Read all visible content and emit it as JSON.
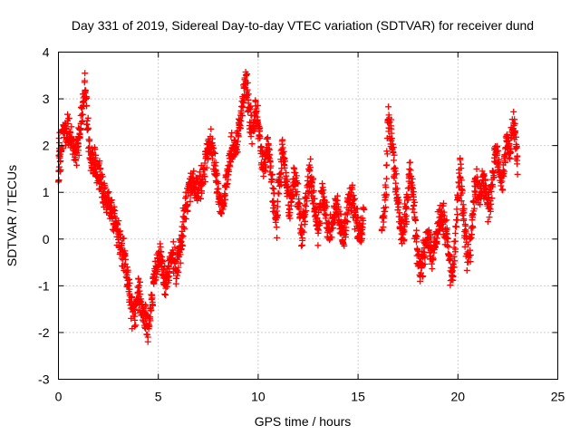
{
  "chart_data": {
    "type": "scatter",
    "title": "Day 331 of 2019, Sidereal Day-to-day VTEC variation (SDTVAR) for receiver dund",
    "xlabel": "GPS time / hours",
    "ylabel": "SDTVAR / TECUs",
    "xlim": [
      0,
      25
    ],
    "ylim": [
      -3,
      4
    ],
    "xticks": [
      0,
      5,
      10,
      15,
      20,
      25
    ],
    "yticks": [
      -3,
      -2,
      -1,
      0,
      1,
      2,
      3,
      4
    ],
    "grid": true,
    "marker": "+",
    "color": "#ff0000",
    "series": [
      {
        "name": "SDTVAR",
        "approx_trace": [
          [
            0.0,
            1.3
          ],
          [
            0.05,
            2.1
          ],
          [
            0.1,
            1.6
          ],
          [
            0.2,
            2.2
          ],
          [
            0.3,
            2.3
          ],
          [
            0.4,
            2.4
          ],
          [
            0.5,
            2.3
          ],
          [
            0.6,
            2.2
          ],
          [
            0.7,
            2.1
          ],
          [
            0.8,
            1.95
          ],
          [
            0.9,
            1.85
          ],
          [
            1.0,
            2.1
          ],
          [
            1.1,
            2.5
          ],
          [
            1.2,
            2.8
          ],
          [
            1.3,
            3.3
          ],
          [
            1.4,
            2.8
          ],
          [
            1.5,
            2.1
          ],
          [
            1.6,
            1.7
          ],
          [
            1.7,
            1.6
          ],
          [
            1.8,
            1.6
          ],
          [
            1.9,
            1.5
          ],
          [
            2.0,
            1.4
          ],
          [
            2.1,
            1.3
          ],
          [
            2.2,
            1.15
          ],
          [
            2.3,
            1.0
          ],
          [
            2.4,
            0.85
          ],
          [
            2.5,
            0.8
          ],
          [
            2.6,
            0.8
          ],
          [
            2.7,
            0.55
          ],
          [
            2.8,
            0.4
          ],
          [
            2.9,
            0.25
          ],
          [
            3.0,
            0.1
          ],
          [
            3.1,
            -0.1
          ],
          [
            3.2,
            -0.25
          ],
          [
            3.3,
            -0.4
          ],
          [
            3.4,
            -0.7
          ],
          [
            3.5,
            -1.0
          ],
          [
            3.6,
            -1.3
          ],
          [
            3.7,
            -1.55
          ],
          [
            3.8,
            -1.65
          ],
          [
            3.9,
            -1.4
          ],
          [
            4.0,
            -1.1
          ],
          [
            4.1,
            -1.3
          ],
          [
            4.2,
            -1.55
          ],
          [
            4.3,
            -1.7
          ],
          [
            4.4,
            -1.8
          ],
          [
            4.5,
            -1.95
          ],
          [
            4.6,
            -1.6
          ],
          [
            4.7,
            -1.2
          ],
          [
            4.8,
            -0.9
          ],
          [
            4.9,
            -0.6
          ],
          [
            5.0,
            -0.4
          ],
          [
            5.1,
            -0.3
          ],
          [
            5.2,
            -0.6
          ],
          [
            5.3,
            -0.9
          ],
          [
            5.4,
            -1.05
          ],
          [
            5.5,
            -0.8
          ],
          [
            5.6,
            -0.5
          ],
          [
            5.7,
            -0.3
          ],
          [
            5.8,
            -0.5
          ],
          [
            5.9,
            -0.7
          ],
          [
            6.0,
            -0.4
          ],
          [
            6.1,
            -0.2
          ],
          [
            6.2,
            0.1
          ],
          [
            6.3,
            0.4
          ],
          [
            6.4,
            0.7
          ],
          [
            6.5,
            0.95
          ],
          [
            6.6,
            1.15
          ],
          [
            6.7,
            1.2
          ],
          [
            6.8,
            1.1
          ],
          [
            6.9,
            1.05
          ],
          [
            7.0,
            1.1
          ],
          [
            7.1,
            1.15
          ],
          [
            7.2,
            1.3
          ],
          [
            7.3,
            1.5
          ],
          [
            7.4,
            1.75
          ],
          [
            7.5,
            1.95
          ],
          [
            7.6,
            2.05
          ],
          [
            7.7,
            1.9
          ],
          [
            7.8,
            1.6
          ],
          [
            7.9,
            1.3
          ],
          [
            8.0,
            1.0
          ],
          [
            8.1,
            0.8
          ],
          [
            8.2,
            0.75
          ],
          [
            8.3,
            0.9
          ],
          [
            8.4,
            1.2
          ],
          [
            8.5,
            1.5
          ],
          [
            8.6,
            1.75
          ],
          [
            8.7,
            1.9
          ],
          [
            8.8,
            2.0
          ],
          [
            8.9,
            2.1
          ],
          [
            9.0,
            2.25
          ],
          [
            9.1,
            2.5
          ],
          [
            9.2,
            2.8
          ],
          [
            9.3,
            3.1
          ],
          [
            9.4,
            3.35
          ],
          [
            9.5,
            2.9
          ],
          [
            9.6,
            2.5
          ],
          [
            9.7,
            2.3
          ],
          [
            9.8,
            2.5
          ],
          [
            9.9,
            2.75
          ],
          [
            10.0,
            2.6
          ],
          [
            10.1,
            2.1
          ],
          [
            10.2,
            1.7
          ],
          [
            10.3,
            1.5
          ],
          [
            10.4,
            1.85
          ],
          [
            10.5,
            2.0
          ],
          [
            10.6,
            1.6
          ],
          [
            10.7,
            1.2
          ],
          [
            10.8,
            0.7
          ],
          [
            10.9,
            0.3
          ],
          [
            11.0,
            0.8
          ],
          [
            11.1,
            1.4
          ],
          [
            11.2,
            1.9
          ],
          [
            11.3,
            1.7
          ],
          [
            11.4,
            1.3
          ],
          [
            11.5,
            0.9
          ],
          [
            11.6,
            0.6
          ],
          [
            11.7,
            0.95
          ],
          [
            11.8,
            1.3
          ],
          [
            11.9,
            1.1
          ],
          [
            12.0,
            0.8
          ],
          [
            12.1,
            0.4
          ],
          [
            12.2,
            0.1
          ],
          [
            12.3,
            0.5
          ],
          [
            12.4,
            0.9
          ],
          [
            12.5,
            1.2
          ],
          [
            12.6,
            1.4
          ],
          [
            12.7,
            1.1
          ],
          [
            12.8,
            0.8
          ],
          [
            12.9,
            0.5
          ],
          [
            13.0,
            0.2
          ],
          [
            13.1,
            0.6
          ],
          [
            13.2,
            0.9
          ],
          [
            13.3,
            0.8
          ],
          [
            13.4,
            0.55
          ],
          [
            13.5,
            0.3
          ],
          [
            13.6,
            0.1
          ],
          [
            13.7,
            0.3
          ],
          [
            13.8,
            0.55
          ],
          [
            13.9,
            0.7
          ],
          [
            14.0,
            0.6
          ],
          [
            14.1,
            0.4
          ],
          [
            14.2,
            0.15
          ],
          [
            14.3,
            0.0
          ],
          [
            14.4,
            0.3
          ],
          [
            14.5,
            0.7
          ],
          [
            14.6,
            0.95
          ],
          [
            14.7,
            0.9
          ],
          [
            14.8,
            0.7
          ],
          [
            14.9,
            0.5
          ],
          [
            15.0,
            0.3
          ],
          [
            15.1,
            0.1
          ],
          [
            15.2,
            0.3
          ],
          [
            15.3,
            0.4
          ],
          [
            16.2,
            0.3
          ],
          [
            16.3,
            0.6
          ],
          [
            16.4,
            1.0
          ],
          [
            16.5,
            2.7
          ],
          [
            16.6,
            2.3
          ],
          [
            16.7,
            2.0
          ],
          [
            16.8,
            1.6
          ],
          [
            16.9,
            1.2
          ],
          [
            17.0,
            0.8
          ],
          [
            17.1,
            0.4
          ],
          [
            17.2,
            0.1
          ],
          [
            17.3,
            0.2
          ],
          [
            17.4,
            0.6
          ],
          [
            17.5,
            1.0
          ],
          [
            17.6,
            1.4
          ],
          [
            17.7,
            1.1
          ],
          [
            17.8,
            0.6
          ],
          [
            17.9,
            0.1
          ],
          [
            18.0,
            -0.4
          ],
          [
            18.1,
            -0.7
          ],
          [
            18.2,
            -0.5
          ],
          [
            18.3,
            -0.3
          ],
          [
            18.4,
            -0.1
          ],
          [
            18.5,
            0.05
          ],
          [
            18.6,
            -0.1
          ],
          [
            18.7,
            -0.35
          ],
          [
            18.8,
            -0.2
          ],
          [
            18.9,
            0.0
          ],
          [
            19.0,
            0.3
          ],
          [
            19.1,
            0.5
          ],
          [
            19.2,
            0.55
          ],
          [
            19.3,
            0.4
          ],
          [
            19.4,
            0.2
          ],
          [
            19.5,
            -0.2
          ],
          [
            19.6,
            -0.6
          ],
          [
            19.7,
            -0.8
          ],
          [
            19.8,
            -0.5
          ],
          [
            19.9,
            0.2
          ],
          [
            20.0,
            0.9
          ],
          [
            20.1,
            1.5
          ],
          [
            20.2,
            1.0
          ],
          [
            20.3,
            0.4
          ],
          [
            20.4,
            -0.1
          ],
          [
            20.5,
            -0.4
          ],
          [
            20.6,
            -0.2
          ],
          [
            20.7,
            0.3
          ],
          [
            20.8,
            0.8
          ],
          [
            20.9,
            1.2
          ],
          [
            21.0,
            1.1
          ],
          [
            21.1,
            0.9
          ],
          [
            21.2,
            1.1
          ],
          [
            21.3,
            1.2
          ],
          [
            21.4,
            1.0
          ],
          [
            21.5,
            0.7
          ],
          [
            21.6,
            0.8
          ],
          [
            21.7,
            1.2
          ],
          [
            21.8,
            1.6
          ],
          [
            21.9,
            1.9
          ],
          [
            22.0,
            1.7
          ],
          [
            22.1,
            1.4
          ],
          [
            22.2,
            1.2
          ],
          [
            22.3,
            1.5
          ],
          [
            22.4,
            1.9
          ],
          [
            22.5,
            2.1
          ],
          [
            22.6,
            1.8
          ],
          [
            22.7,
            2.4
          ],
          [
            22.8,
            2.5
          ],
          [
            22.9,
            2.0
          ],
          [
            23.0,
            1.5
          ]
        ],
        "approx_spread": 0.3
      }
    ]
  }
}
